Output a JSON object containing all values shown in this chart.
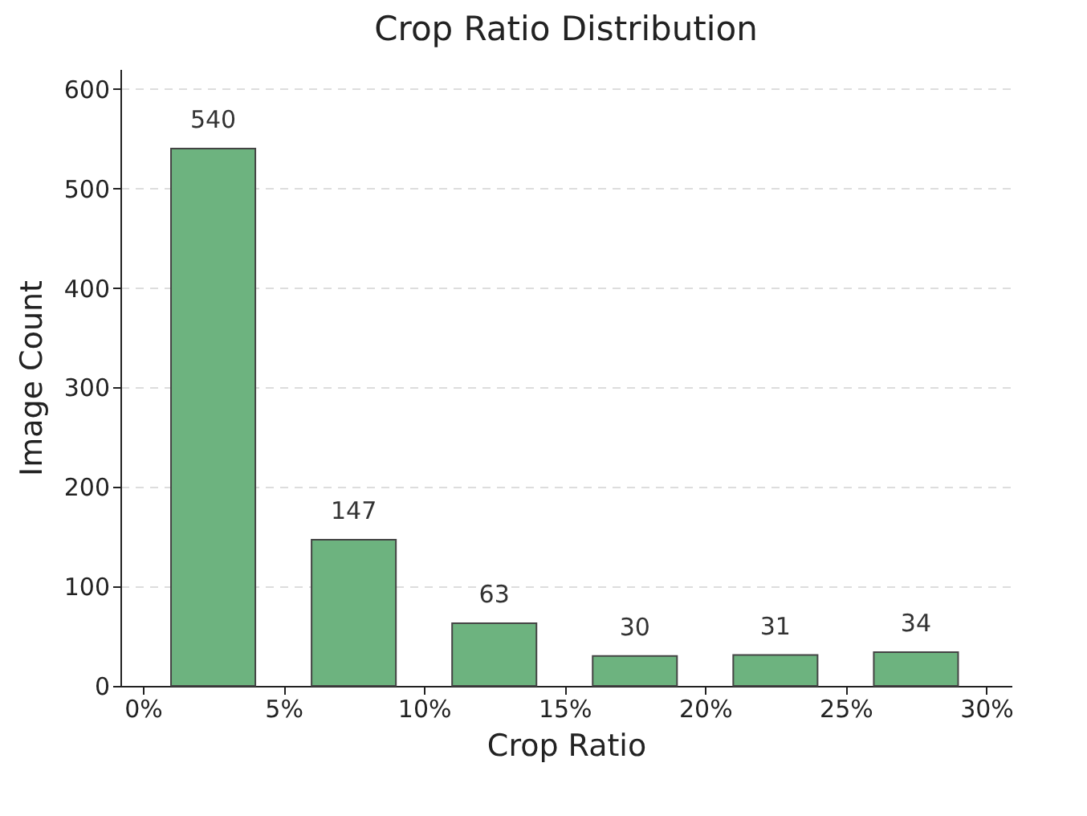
{
  "chart_data": {
    "type": "histogram",
    "title": "Crop Ratio Distribution",
    "xlabel": "Crop Ratio",
    "ylabel": "Image Count",
    "bins": [
      0,
      5,
      10,
      15,
      20,
      25,
      30
    ],
    "values": [
      540,
      147,
      63,
      30,
      31,
      34
    ],
    "color": "#6db37f",
    "xlim": [
      -0.8,
      30.9
    ],
    "xticks": [
      {
        "value": 0,
        "label": "0%"
      },
      {
        "value": 5,
        "label": "5%"
      },
      {
        "value": 10,
        "label": "10%"
      },
      {
        "value": 15,
        "label": "15%"
      },
      {
        "value": 20,
        "label": "20%"
      },
      {
        "value": 25,
        "label": "25%"
      },
      {
        "value": 30,
        "label": "30%"
      }
    ],
    "ylim": [
      0,
      620
    ],
    "yticks": [
      0,
      100,
      200,
      300,
      400,
      500,
      600
    ],
    "grid": "y",
    "data_labels": true
  }
}
